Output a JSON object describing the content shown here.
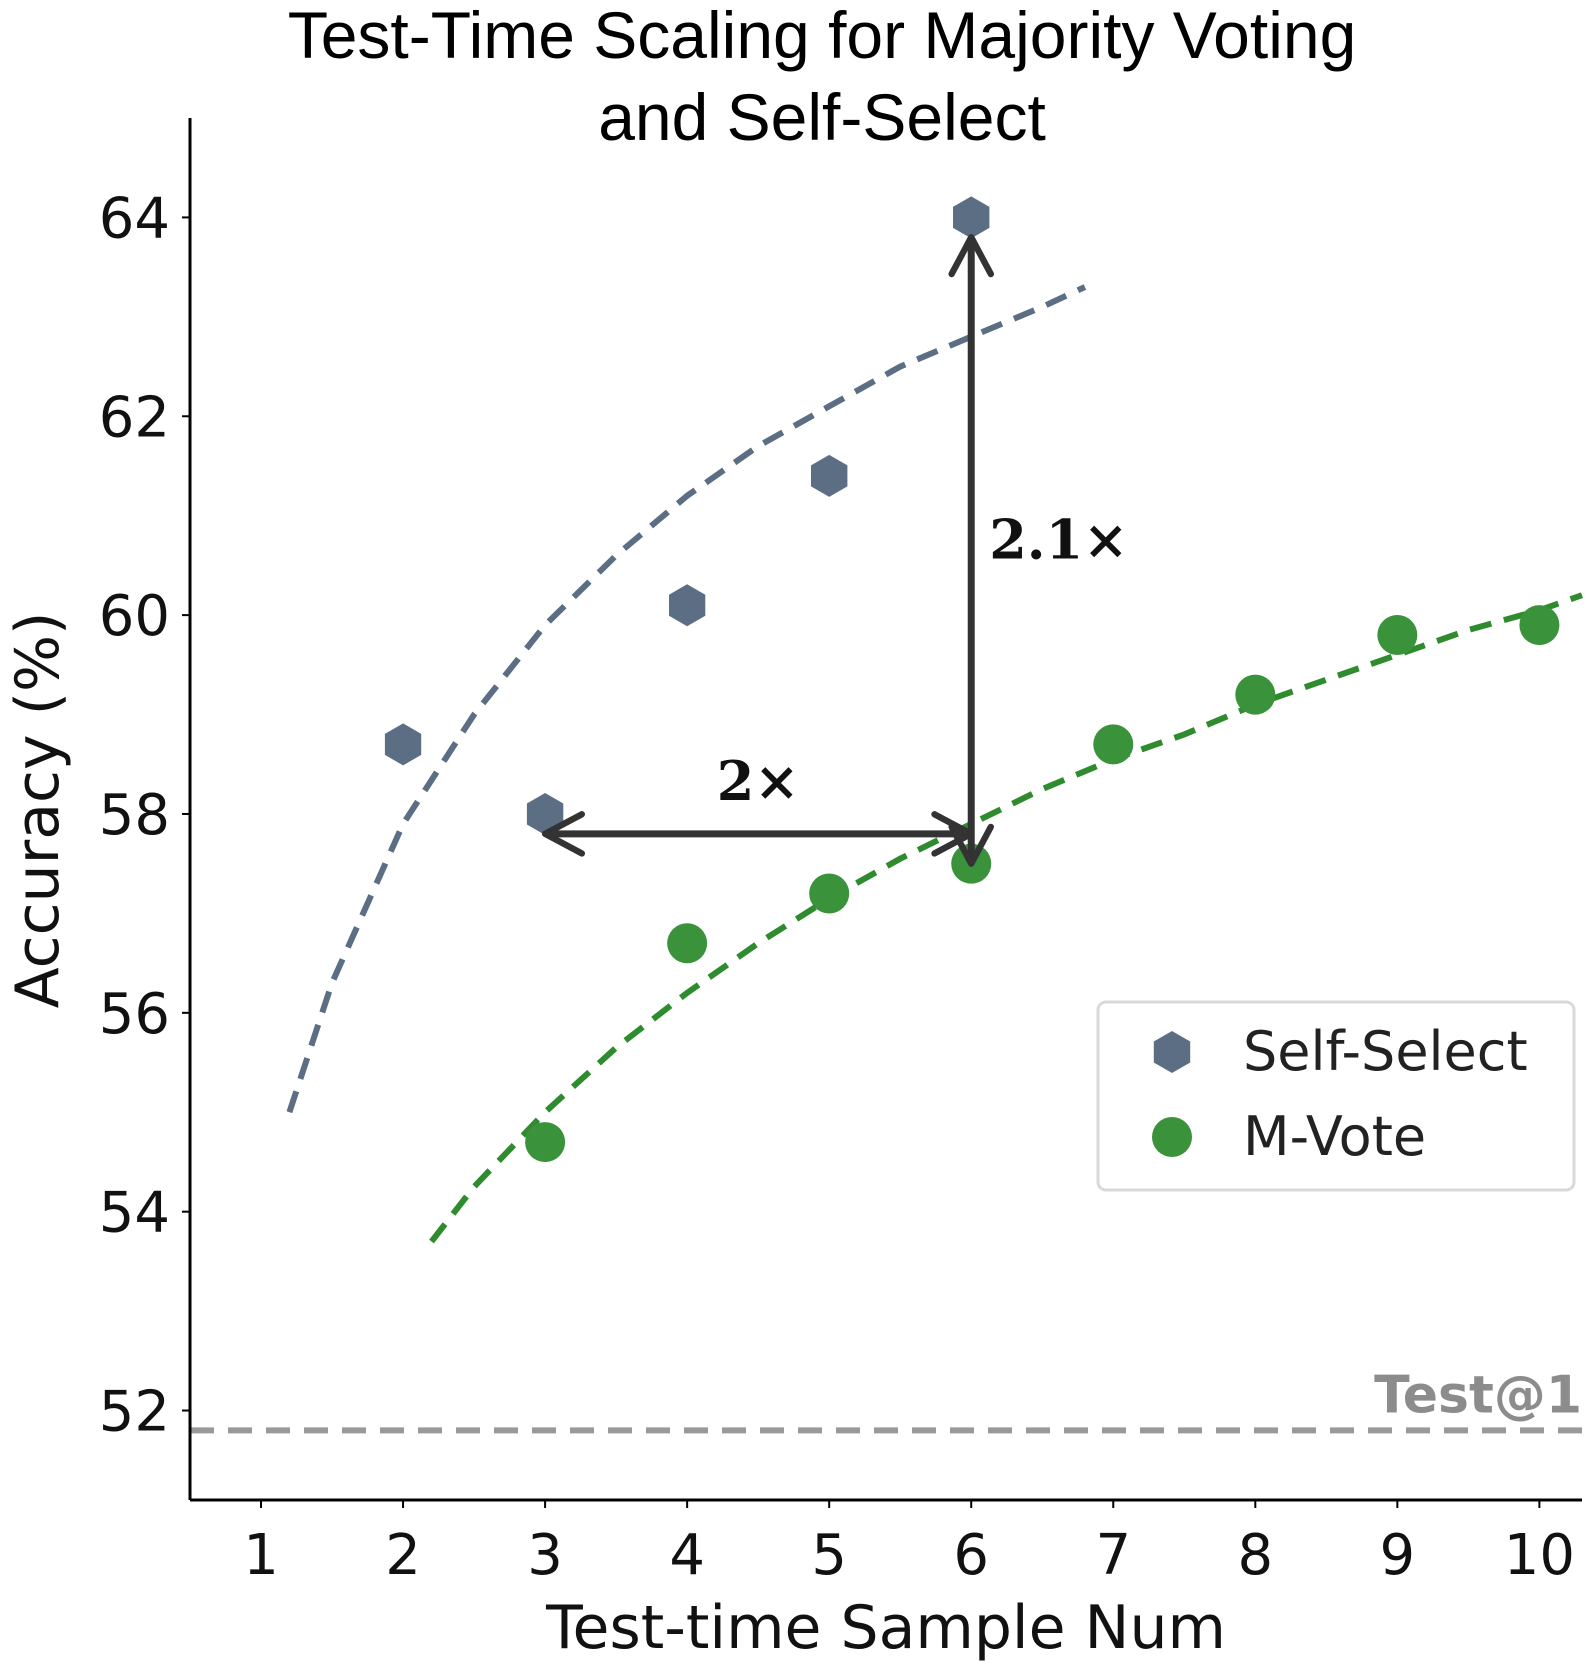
{
  "chart_data": {
    "type": "scatter",
    "title_lines": [
      "Test-Time Scaling for Majority Voting",
      "and Self-Select"
    ],
    "xlabel": "Test-time Sample Num",
    "ylabel": "Accuracy (%)",
    "xlim": [
      0.5,
      10.3
    ],
    "ylim": [
      51.1,
      65.0
    ],
    "xticks": [
      1,
      2,
      3,
      4,
      5,
      6,
      7,
      8,
      9,
      10
    ],
    "yticks": [
      52,
      54,
      56,
      58,
      60,
      62,
      64
    ],
    "grid": false,
    "legend_position": "center-right",
    "series": [
      {
        "name": "Self-Select",
        "marker": "hexagon",
        "color": "#5b6e84",
        "x": [
          2,
          3,
          4,
          5,
          6
        ],
        "y": [
          58.7,
          58.0,
          60.1,
          61.4,
          64.0
        ],
        "trend": {
          "color": "#5b6e84",
          "x": [
            1.2,
            1.5,
            2,
            2.5,
            3,
            3.5,
            4,
            4.5,
            5,
            5.5,
            6,
            6.5,
            6.8
          ],
          "y": [
            55.0,
            56.3,
            57.9,
            59.0,
            59.9,
            60.6,
            61.2,
            61.7,
            62.1,
            62.5,
            62.8,
            63.1,
            63.3
          ]
        }
      },
      {
        "name": "M-Vote",
        "marker": "circle",
        "color": "#3a923a",
        "x": [
          3,
          4,
          5,
          6,
          7,
          8,
          9,
          10
        ],
        "y": [
          54.7,
          56.7,
          57.2,
          57.5,
          58.7,
          59.2,
          59.8,
          59.9
        ],
        "trend": {
          "color": "#2e8b2e",
          "x": [
            2.2,
            2.5,
            3,
            3.5,
            4,
            4.5,
            5,
            5.5,
            6,
            6.5,
            7,
            7.5,
            8,
            8.5,
            9,
            9.5,
            10,
            10.3
          ],
          "y": [
            53.7,
            54.25,
            55.0,
            55.65,
            56.2,
            56.7,
            57.15,
            57.55,
            57.9,
            58.25,
            58.55,
            58.8,
            59.1,
            59.35,
            59.6,
            59.85,
            60.05,
            60.2
          ]
        }
      }
    ],
    "reference_line": {
      "label": "Test@1",
      "y": 51.8,
      "color": "#999999"
    },
    "annotations": [
      {
        "label": "2×",
        "type": "horizontal-double-arrow",
        "from": [
          3,
          57.8
        ],
        "to": [
          6,
          57.8
        ]
      },
      {
        "label": "2.1×",
        "type": "vertical-double-arrow",
        "from": [
          6,
          57.5
        ],
        "to": [
          6,
          63.8
        ]
      }
    ]
  }
}
